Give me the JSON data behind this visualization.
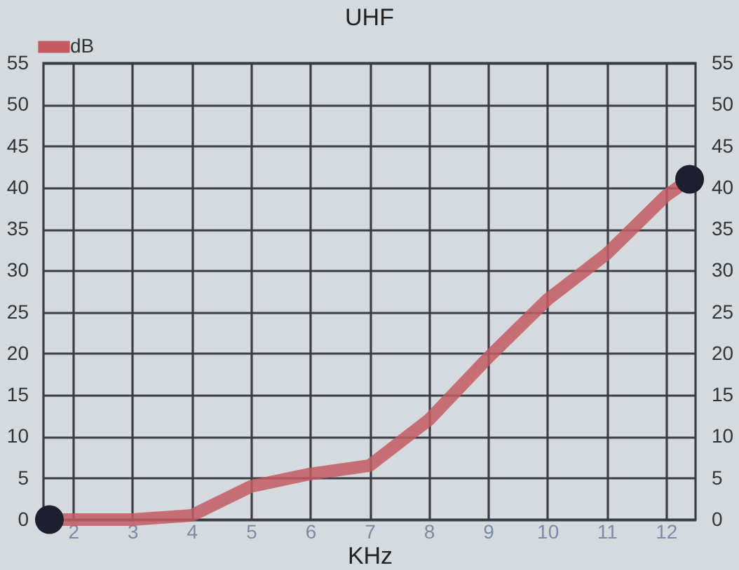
{
  "chart_data": {
    "type": "line",
    "title": "UHF",
    "xlabel": "KHz",
    "x": [
      1.6,
      2,
      3,
      4,
      5,
      6,
      7,
      8,
      9,
      10,
      11,
      12,
      12.4
    ],
    "series": [
      {
        "name": "dB",
        "color": "#c45a62",
        "values": [
          0,
          0,
          0,
          0.5,
          4,
          5.5,
          6.5,
          12,
          19.5,
          26.5,
          32,
          39,
          41
        ]
      },
      {
        "type": "scatter",
        "color": "#1e1f2e",
        "x": [
          1.6,
          12.4
        ],
        "values": [
          0,
          41
        ],
        "axis": "y2"
      }
    ],
    "xlim": [
      1.5,
      12.5
    ],
    "xticks": [
      2,
      3,
      4,
      5,
      6,
      7,
      8,
      9,
      10,
      11,
      12
    ],
    "ylim": [
      0,
      55
    ],
    "yticks": [
      0,
      5,
      10,
      15,
      20,
      25,
      30,
      35,
      40,
      45,
      50,
      55
    ],
    "y2lim": [
      0,
      55
    ],
    "y2ticks": [
      0,
      5,
      10,
      15,
      20,
      25,
      30,
      35,
      40,
      45,
      50,
      55
    ],
    "grid": true,
    "legend": "top left",
    "line_style": "solid"
  }
}
